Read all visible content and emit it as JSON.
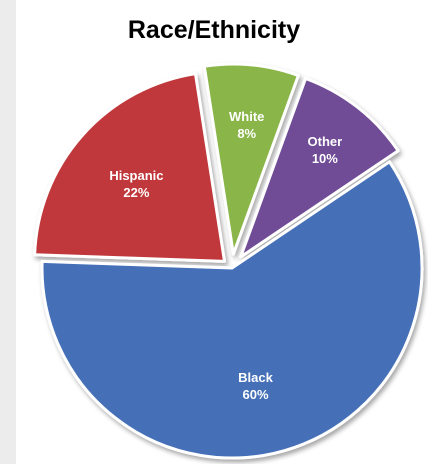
{
  "chart_data": {
    "type": "pie",
    "title": "Race/Ethnicity",
    "slices": [
      {
        "label": "Hispanic",
        "value_label": "22%",
        "value": 22,
        "color": "#c0393b"
      },
      {
        "label": "White",
        "value_label": "8%",
        "value": 8,
        "color": "#8ab548"
      },
      {
        "label": "Other",
        "value_label": "10%",
        "value": 10,
        "color": "#6f4b96"
      },
      {
        "label": "Black",
        "value_label": "60%",
        "value": 60,
        "color": "#4470b8"
      }
    ],
    "exploded": true,
    "legend": "none"
  }
}
